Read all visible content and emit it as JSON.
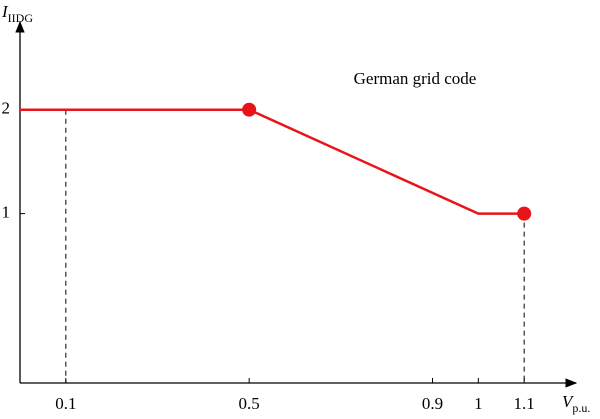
{
  "chart_data": {
    "type": "line",
    "annotation": "German grid code",
    "x_label": {
      "main": "V",
      "sub": "p.u."
    },
    "y_label": {
      "main": "I",
      "sub": "IIDG"
    },
    "x": [
      0,
      0.5,
      1,
      1.1
    ],
    "values": [
      2,
      2,
      1,
      1
    ],
    "color": "#e8141a",
    "markers": {
      "x": [
        0.5,
        1.1
      ],
      "values": [
        2,
        1
      ]
    },
    "droplines": [
      {
        "x": 0.1,
        "y": 2
      },
      {
        "x": 1.1,
        "y": 1
      }
    ],
    "xlim": [
      0,
      1.2
    ],
    "ylim": [
      -0.63,
      2.69
    ],
    "xticks": [
      0.1,
      0.5,
      0.9,
      1,
      1.1
    ],
    "yticks": [
      1,
      2
    ]
  }
}
